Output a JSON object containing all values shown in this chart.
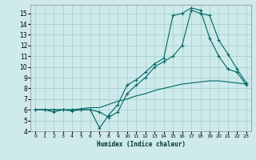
{
  "xlabel": "Humidex (Indice chaleur)",
  "bg_color": "#ceeaea",
  "grid_color": "#a0cccc",
  "line_color": "#006666",
  "xlim": [
    -0.5,
    23.5
  ],
  "ylim": [
    4,
    15.8
  ],
  "xticks": [
    0,
    1,
    2,
    3,
    4,
    5,
    6,
    7,
    8,
    9,
    10,
    11,
    12,
    13,
    14,
    15,
    16,
    17,
    18,
    19,
    20,
    21,
    22,
    23
  ],
  "yticks": [
    4,
    5,
    6,
    7,
    8,
    9,
    10,
    11,
    12,
    13,
    14,
    15
  ],
  "line1_x": [
    0,
    1,
    2,
    3,
    4,
    5,
    6,
    7,
    8,
    9,
    10,
    11,
    12,
    13,
    14,
    15,
    16,
    17,
    18,
    19,
    20,
    21,
    22,
    23
  ],
  "line1_y": [
    6.0,
    6.0,
    5.8,
    6.0,
    5.9,
    6.0,
    6.0,
    5.8,
    5.3,
    5.8,
    7.5,
    8.3,
    9.0,
    10.0,
    10.5,
    11.0,
    12.0,
    15.3,
    15.0,
    14.8,
    12.5,
    11.2,
    9.8,
    8.5
  ],
  "line2_x": [
    0,
    1,
    2,
    3,
    4,
    5,
    6,
    7,
    8,
    9,
    10,
    11,
    12,
    13,
    14,
    15,
    16,
    17,
    18,
    19,
    20,
    21,
    22,
    23
  ],
  "line2_y": [
    6.0,
    6.0,
    6.0,
    6.0,
    6.0,
    6.0,
    6.0,
    4.3,
    5.5,
    6.5,
    8.3,
    8.8,
    9.5,
    10.3,
    10.8,
    14.8,
    15.0,
    15.5,
    15.3,
    12.7,
    11.0,
    9.8,
    9.5,
    8.3
  ],
  "line3_x": [
    0,
    1,
    2,
    3,
    4,
    5,
    6,
    7,
    8,
    9,
    10,
    11,
    12,
    13,
    14,
    15,
    16,
    17,
    18,
    19,
    20,
    21,
    22,
    23
  ],
  "line3_y": [
    6.0,
    6.0,
    6.0,
    6.0,
    6.0,
    6.1,
    6.2,
    6.2,
    6.5,
    6.8,
    7.0,
    7.3,
    7.5,
    7.8,
    8.0,
    8.2,
    8.4,
    8.5,
    8.6,
    8.7,
    8.7,
    8.6,
    8.5,
    8.4
  ]
}
